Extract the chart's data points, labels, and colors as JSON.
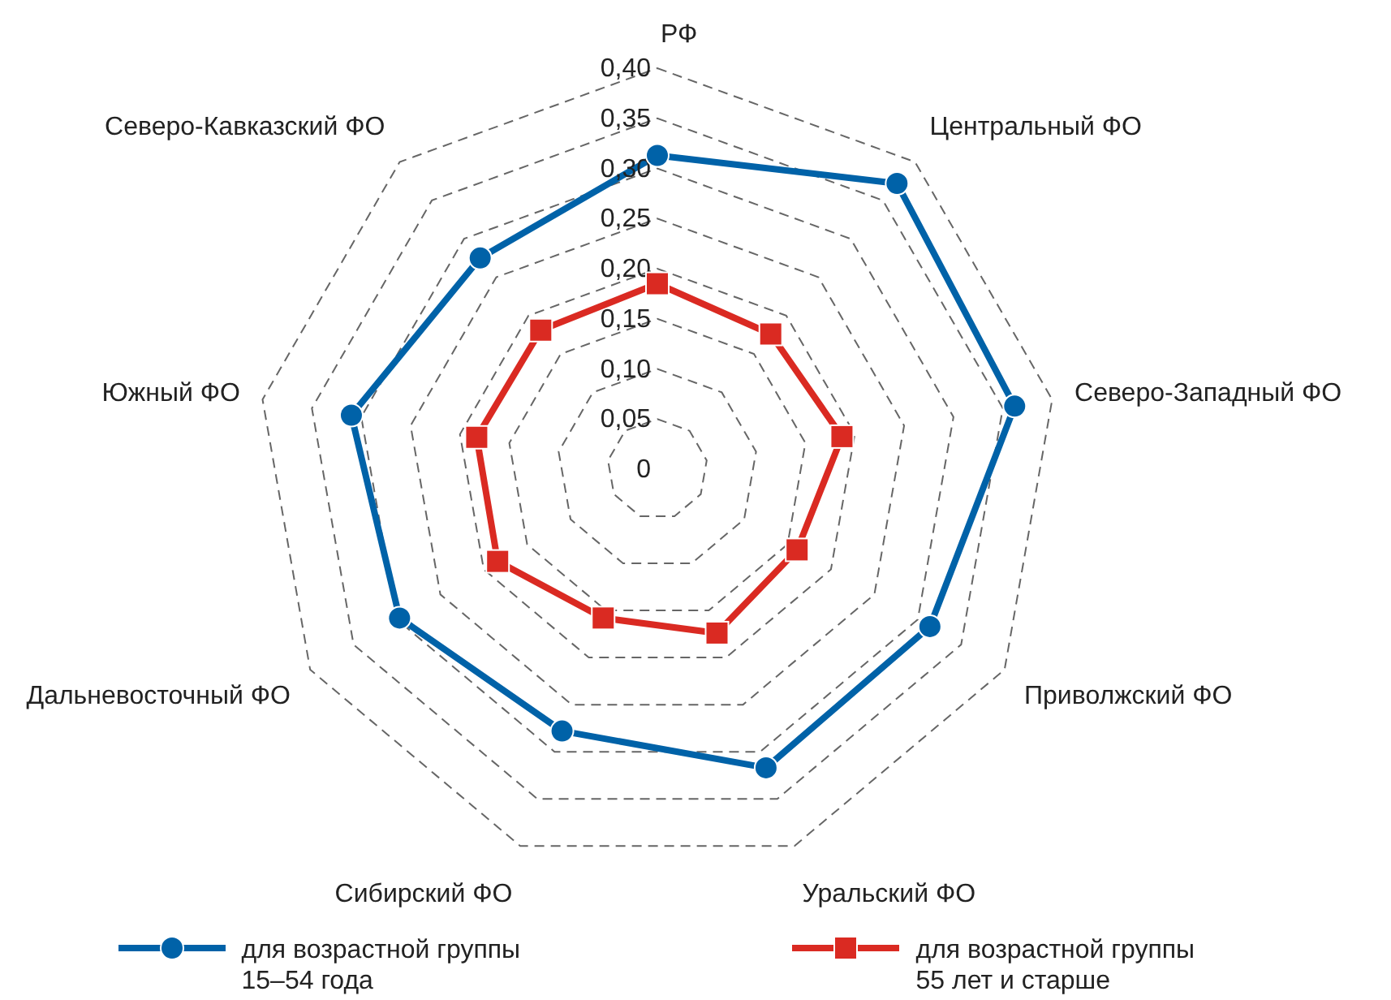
{
  "chart_data": {
    "type": "radar",
    "categories": [
      "РФ",
      "Центральный ФО",
      "Северо-Западный ФО",
      "Приволжский ФО",
      "Уральский ФО",
      "Сибирский ФО",
      "Дальневосточный ФО",
      "Южный ФО",
      "Северо-Кавказский ФО"
    ],
    "series": [
      {
        "name": "для возрастной группы 15–54 года",
        "color": "#0062a8",
        "marker": "circle",
        "values": [
          0.313,
          0.372,
          0.362,
          0.314,
          0.317,
          0.278,
          0.297,
          0.31,
          0.275
        ]
      },
      {
        "name": "для возрастной группы 55 лет и старше",
        "color": "#da2a22",
        "marker": "square",
        "values": [
          0.185,
          0.176,
          0.187,
          0.161,
          0.174,
          0.158,
          0.184,
          0.183,
          0.181
        ]
      }
    ],
    "ylim": [
      0,
      0.4
    ],
    "yticks": [
      0,
      {
        "value": 0.05,
        "label": "0,05"
      },
      {
        "value": 0.1,
        "label": "0,10"
      },
      {
        "value": 0.15,
        "label": "0,15"
      },
      {
        "value": 0.2,
        "label": "0,20"
      },
      {
        "value": 0.25,
        "label": "0,25"
      },
      {
        "value": 0.3,
        "label": "0,30"
      },
      {
        "value": 0.35,
        "label": "0,35"
      },
      {
        "value": 0.4,
        "label": "0,40"
      }
    ],
    "grid": true,
    "legend": "bottom",
    "line_style": "solid"
  }
}
